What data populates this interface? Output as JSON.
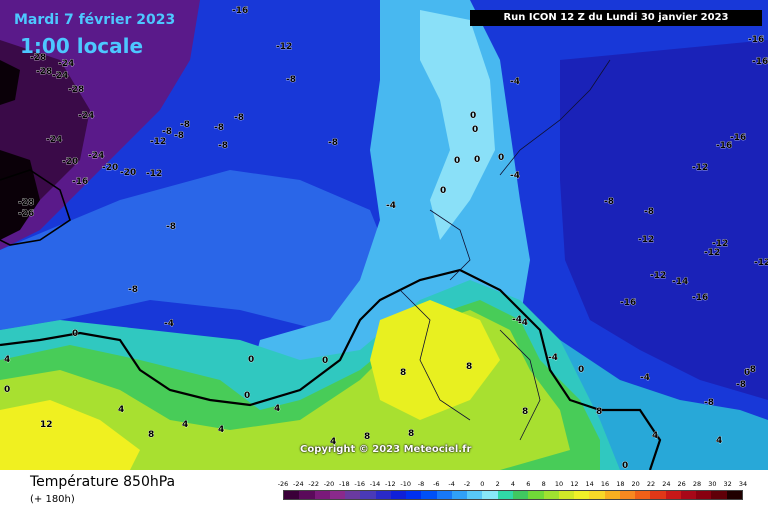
{
  "header": {
    "date": "Mardi 7 février 2023",
    "hour": "1:00 locale",
    "run": "Run ICON 12 Z du Lundi 30 janvier 2023"
  },
  "copyright": "Copyright © 2023 Meteociel.fr",
  "footer": {
    "parameter": "Température 850hPa",
    "lead_time": "(+ 180h)"
  },
  "legend": {
    "ticks": [
      "-26",
      "-24",
      "-22",
      "-20",
      "-18",
      "-16",
      "-14",
      "-12",
      "-10",
      "-8",
      "-6",
      "-4",
      "-2",
      "0",
      "2",
      "4",
      "6",
      "8",
      "10",
      "12",
      "14",
      "16",
      "18",
      "20",
      "22",
      "24",
      "26",
      "28",
      "30",
      "32",
      "34"
    ],
    "colors": [
      "#3a0038",
      "#5a0a5a",
      "#7a1a7a",
      "#8a2a8c",
      "#6a3aa0",
      "#4a3ab8",
      "#2a2ac8",
      "#1020d8",
      "#0030f0",
      "#0050f8",
      "#1878f8",
      "#30a0f8",
      "#58c8f8",
      "#88e8f8",
      "#30d8a8",
      "#40c860",
      "#70d838",
      "#a0e030",
      "#d0e828",
      "#f0f028",
      "#f8d828",
      "#f8b020",
      "#f88820",
      "#f06018",
      "#e03818",
      "#c81818",
      "#a80818",
      "#880010",
      "#600008",
      "#200000"
    ]
  },
  "map_labels": [
    {
      "text": "-16"
    },
    {
      "text": "-28"
    },
    {
      "text": "-28"
    },
    {
      "text": "-24"
    },
    {
      "text": "-24"
    },
    {
      "text": "-28"
    },
    {
      "text": "-24"
    },
    {
      "text": "-24"
    },
    {
      "text": "-20"
    },
    {
      "text": "-24"
    },
    {
      "text": "-20"
    },
    {
      "text": "-20"
    },
    {
      "text": "-16"
    },
    {
      "text": "-12"
    },
    {
      "text": "-28"
    },
    {
      "text": "-26"
    },
    {
      "text": "-12"
    },
    {
      "text": "-8"
    },
    {
      "text": "-8"
    },
    {
      "text": "-8"
    },
    {
      "text": "-8"
    },
    {
      "text": "-8"
    },
    {
      "text": "-8"
    },
    {
      "text": "-12"
    },
    {
      "text": "-8"
    },
    {
      "text": "-8"
    },
    {
      "text": "-8"
    },
    {
      "text": "-4"
    },
    {
      "text": "-8"
    },
    {
      "text": "-4"
    },
    {
      "text": "0"
    },
    {
      "text": "0"
    },
    {
      "text": "0"
    },
    {
      "text": "0"
    },
    {
      "text": "0"
    },
    {
      "text": "0"
    },
    {
      "text": "-4"
    },
    {
      "text": "-4"
    },
    {
      "text": "-4"
    },
    {
      "text": "0"
    },
    {
      "text": "0"
    },
    {
      "text": "0"
    },
    {
      "text": "4"
    },
    {
      "text": "4"
    },
    {
      "text": "4"
    },
    {
      "text": "8"
    },
    {
      "text": "12"
    },
    {
      "text": "8"
    },
    {
      "text": "8"
    },
    {
      "text": "8"
    },
    {
      "text": "8"
    },
    {
      "text": "4"
    },
    {
      "text": "4"
    },
    {
      "text": "-4"
    },
    {
      "text": "0"
    },
    {
      "text": "8"
    },
    {
      "text": "8"
    },
    {
      "text": "4"
    },
    {
      "text": "4"
    },
    {
      "text": "0"
    },
    {
      "text": "0"
    },
    {
      "text": "-16"
    },
    {
      "text": "-16"
    },
    {
      "text": "-16"
    },
    {
      "text": "-16"
    },
    {
      "text": "-12"
    },
    {
      "text": "-8"
    },
    {
      "text": "-8"
    },
    {
      "text": "-12"
    },
    {
      "text": "-12"
    },
    {
      "text": "-12"
    },
    {
      "text": "-12"
    },
    {
      "text": "-12"
    },
    {
      "text": "-14"
    },
    {
      "text": "-16"
    },
    {
      "text": "-16"
    },
    {
      "text": "-8"
    },
    {
      "text": "-8"
    },
    {
      "text": "-8"
    },
    {
      "text": "-4"
    },
    {
      "text": "-4"
    },
    {
      "text": "0"
    },
    {
      "text": "4"
    },
    {
      "text": "0"
    }
  ]
}
